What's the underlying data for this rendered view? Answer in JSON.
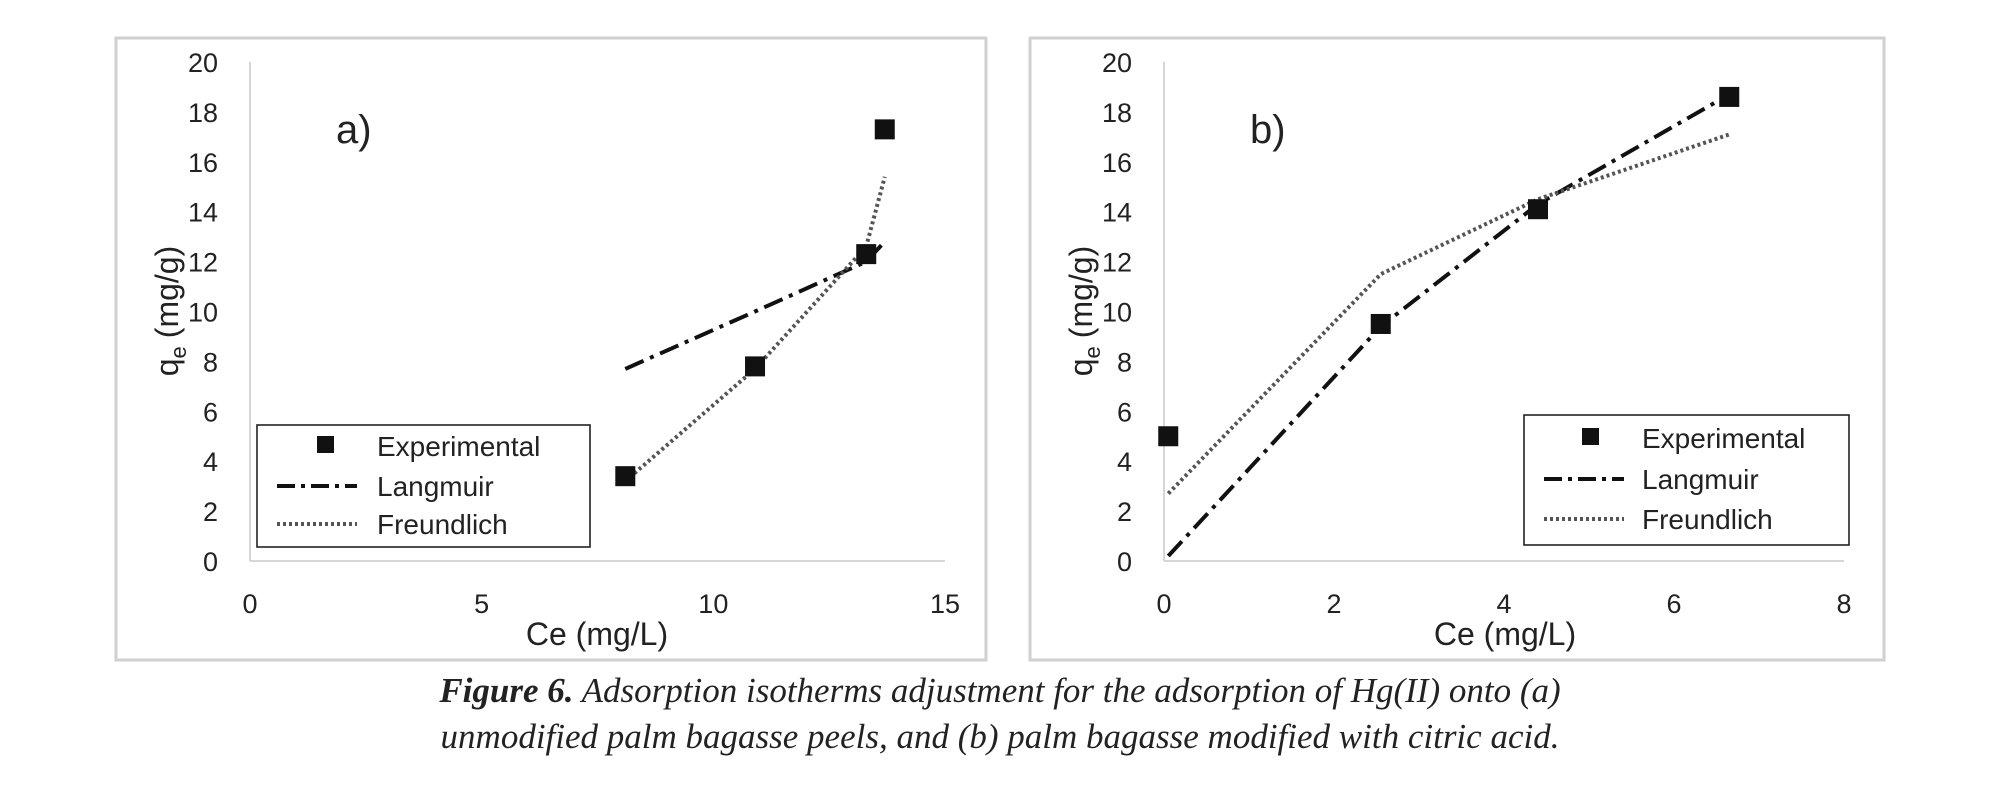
{
  "caption": {
    "label": "Figure 6.",
    "line1": "Adsorption isotherms adjustment for the adsorption of Hg(II) onto (a)",
    "line2": "unmodified palm bagasse peels, and (b) palm bagasse modified with citric acid."
  },
  "chart_data": [
    {
      "type": "scatter",
      "panel_label": "a)",
      "xlabel": "Ce (mg/L)",
      "ylabel_main": "q",
      "ylabel_sub": "e",
      "ylabel_unit": "(mg/g)",
      "xlim": [
        0,
        15
      ],
      "ylim": [
        0,
        20
      ],
      "xticks": [
        0,
        5,
        10,
        15
      ],
      "yticks": [
        0,
        2,
        4,
        6,
        8,
        10,
        12,
        14,
        16,
        18,
        20
      ],
      "grid": false,
      "legend_position": "bottom-left",
      "series": [
        {
          "name": "Experimental",
          "style": "square-marker",
          "color": "#111111",
          "x": [
            8.1,
            10.9,
            13.3,
            13.7
          ],
          "y": [
            3.4,
            7.8,
            12.3,
            17.3
          ]
        },
        {
          "name": "Langmuir",
          "style": "dash-dot",
          "color": "#111111",
          "x": [
            8.1,
            10.9,
            13.3,
            13.7
          ],
          "y": [
            7.7,
            10.0,
            12.0,
            12.8
          ]
        },
        {
          "name": "Freundlich",
          "style": "dotted",
          "color": "#555555",
          "x": [
            8.1,
            10.9,
            13.3,
            13.7
          ],
          "y": [
            3.2,
            7.7,
            12.6,
            15.4
          ]
        }
      ]
    },
    {
      "type": "scatter",
      "panel_label": "b)",
      "xlabel": "Ce (mg/L)",
      "ylabel_main": "q",
      "ylabel_sub": "e",
      "ylabel_unit": "(mg/g)",
      "xlim": [
        0,
        8
      ],
      "ylim": [
        0,
        20
      ],
      "xticks": [
        0,
        2,
        4,
        6,
        8
      ],
      "yticks": [
        0,
        2,
        4,
        6,
        8,
        10,
        12,
        14,
        16,
        18,
        20
      ],
      "grid": false,
      "legend_position": "bottom-right",
      "series": [
        {
          "name": "Experimental",
          "style": "square-marker",
          "color": "#111111",
          "x": [
            0.05,
            2.55,
            4.4,
            6.65
          ],
          "y": [
            5.0,
            9.5,
            14.1,
            18.6
          ]
        },
        {
          "name": "Langmuir",
          "style": "dash-dot",
          "color": "#111111",
          "x": [
            0.05,
            2.55,
            4.4,
            6.65
          ],
          "y": [
            0.2,
            9.4,
            14.3,
            18.7
          ]
        },
        {
          "name": "Freundlich",
          "style": "dotted",
          "color": "#555555",
          "x": [
            0.05,
            2.55,
            4.4,
            6.65
          ],
          "y": [
            2.7,
            11.5,
            14.5,
            17.1
          ]
        }
      ]
    }
  ]
}
